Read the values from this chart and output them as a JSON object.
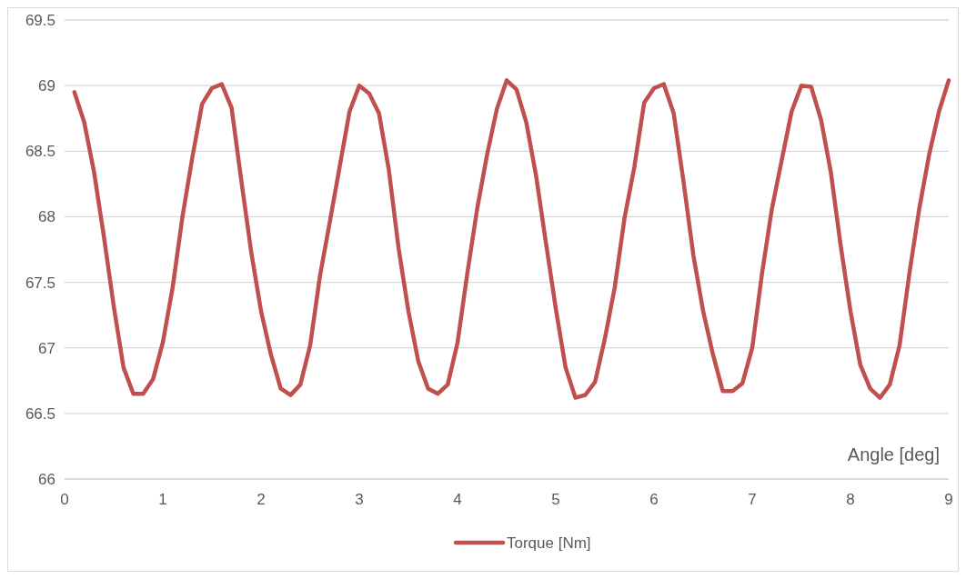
{
  "chart_data": {
    "type": "line",
    "xlabel": "Angle [deg]",
    "x": [
      0.1,
      0.2,
      0.3,
      0.4,
      0.5,
      0.6,
      0.7,
      0.8,
      0.9,
      1.0,
      1.1,
      1.2,
      1.3,
      1.4,
      1.5,
      1.6,
      1.7,
      1.8,
      1.9,
      2.0,
      2.1,
      2.2,
      2.3,
      2.4,
      2.5,
      2.6,
      2.7,
      2.8,
      2.9,
      3.0,
      3.1,
      3.2,
      3.3,
      3.4,
      3.5,
      3.6,
      3.7,
      3.8,
      3.9,
      4.0,
      4.1,
      4.2,
      4.3,
      4.4,
      4.5,
      4.6,
      4.7,
      4.8,
      4.9,
      5.0,
      5.1,
      5.2,
      5.3,
      5.4,
      5.5,
      5.6,
      5.7,
      5.8,
      5.9,
      6.0,
      6.1,
      6.2,
      6.3,
      6.4,
      6.5,
      6.6,
      6.7,
      6.8,
      6.9,
      7.0,
      7.1,
      7.2,
      7.3,
      7.4,
      7.5,
      7.6,
      7.7,
      7.8,
      7.9,
      8.0,
      8.1,
      8.2,
      8.3,
      8.4,
      8.5,
      8.6,
      8.7,
      8.8,
      8.9,
      9.0
    ],
    "series": [
      {
        "name": "Torque [Nm]",
        "color": "#c0504d",
        "values": [
          68.95,
          68.72,
          68.34,
          67.85,
          67.32,
          66.85,
          66.65,
          66.65,
          66.76,
          67.04,
          67.46,
          68.0,
          68.45,
          68.86,
          68.98,
          69.01,
          68.83,
          68.27,
          67.73,
          67.28,
          66.95,
          66.69,
          66.64,
          66.72,
          67.02,
          67.55,
          67.96,
          68.38,
          68.8,
          69.0,
          68.94,
          68.79,
          68.36,
          67.76,
          67.28,
          66.9,
          66.69,
          66.65,
          66.72,
          67.04,
          67.57,
          68.06,
          68.47,
          68.82,
          69.04,
          68.97,
          68.72,
          68.31,
          67.8,
          67.3,
          66.85,
          66.62,
          66.64,
          66.74,
          67.07,
          67.46,
          67.99,
          68.38,
          68.87,
          68.98,
          69.01,
          68.79,
          68.27,
          67.71,
          67.28,
          66.95,
          66.67,
          66.67,
          66.73,
          67.0,
          67.57,
          68.06,
          68.43,
          68.8,
          69.0,
          68.99,
          68.74,
          68.34,
          67.78,
          67.28,
          66.87,
          66.69,
          66.62,
          66.72,
          67.02,
          67.57,
          68.06,
          68.47,
          68.8,
          69.04
        ]
      }
    ],
    "xlim": [
      0,
      9
    ],
    "xticks": [
      0,
      1,
      2,
      3,
      4,
      5,
      6,
      7,
      8,
      9
    ],
    "ylim": [
      66,
      69.5
    ],
    "yticks": [
      66,
      66.5,
      67,
      67.5,
      68,
      68.5,
      69,
      69.5
    ],
    "grid": "y",
    "legend": "bottom",
    "marker": "none",
    "line_style": "solid"
  }
}
